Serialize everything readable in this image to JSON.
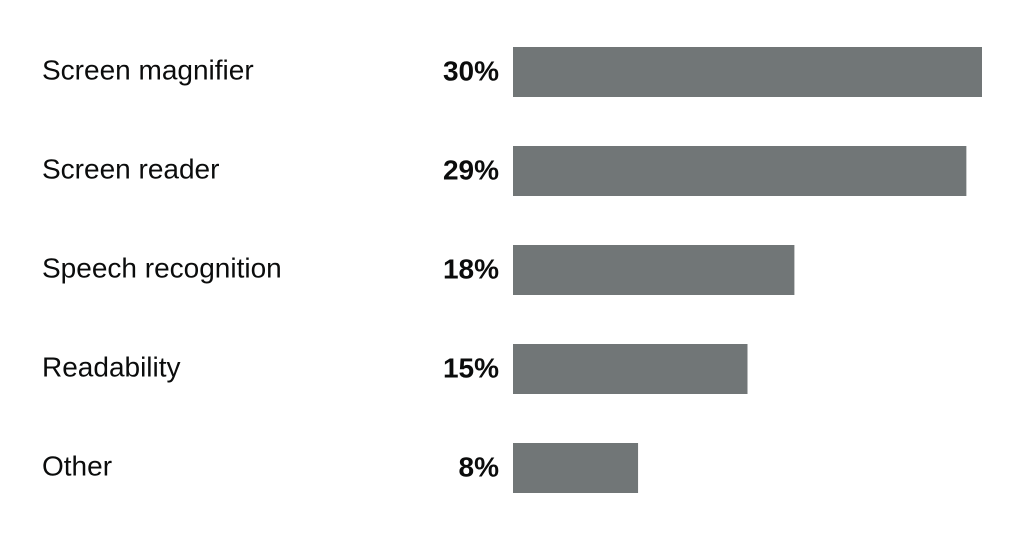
{
  "chart_data": {
    "type": "bar",
    "orientation": "horizontal",
    "categories": [
      "Screen magnifier",
      "Screen reader",
      "Speech recognition",
      "Readability",
      "Other"
    ],
    "values": [
      30,
      29,
      18,
      15,
      8
    ],
    "value_labels": [
      "30%",
      "29%",
      "18%",
      "15%",
      "8%"
    ],
    "color": "#717677"
  }
}
